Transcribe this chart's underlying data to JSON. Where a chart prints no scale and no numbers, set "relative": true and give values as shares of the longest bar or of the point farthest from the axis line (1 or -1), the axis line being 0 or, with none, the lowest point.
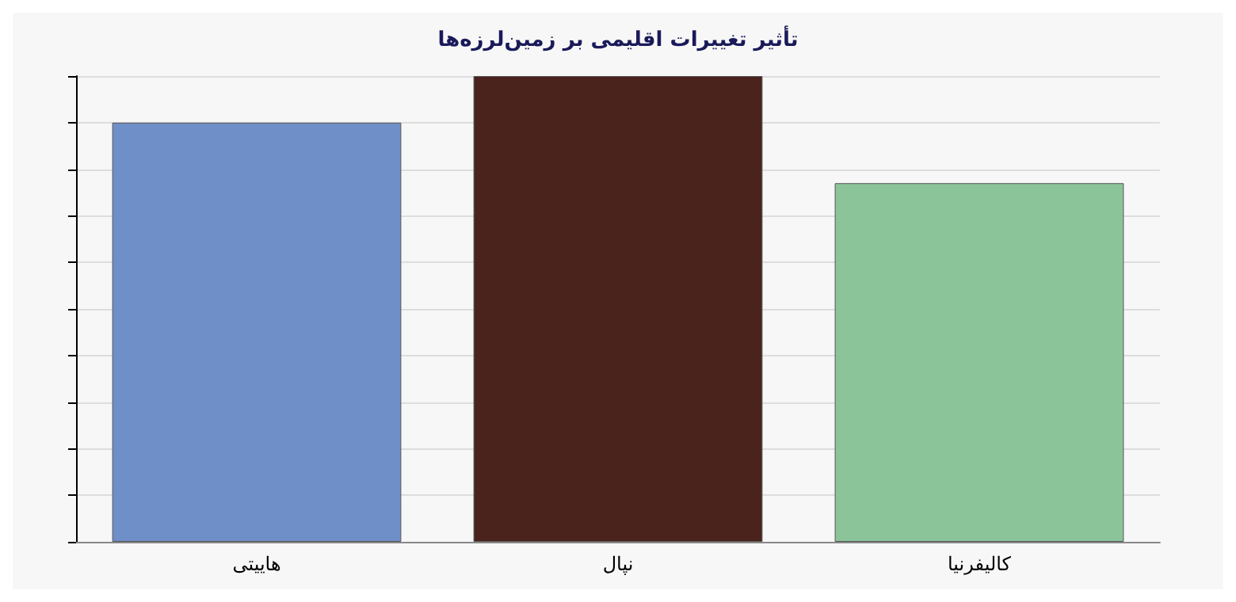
{
  "chart_data": {
    "type": "bar",
    "title": "تأثیر تغییرات اقلیمی بر زمین‌لرزه‌ها",
    "categories": [
      "هاییتی",
      "نپال",
      "کالیفرنیا"
    ],
    "values": [
      0.9,
      1,
      0.77
    ],
    "colors": [
      "#6f8fc9",
      "#4a231d",
      "#8cc49a"
    ],
    "relative": true,
    "grid": "y"
  }
}
